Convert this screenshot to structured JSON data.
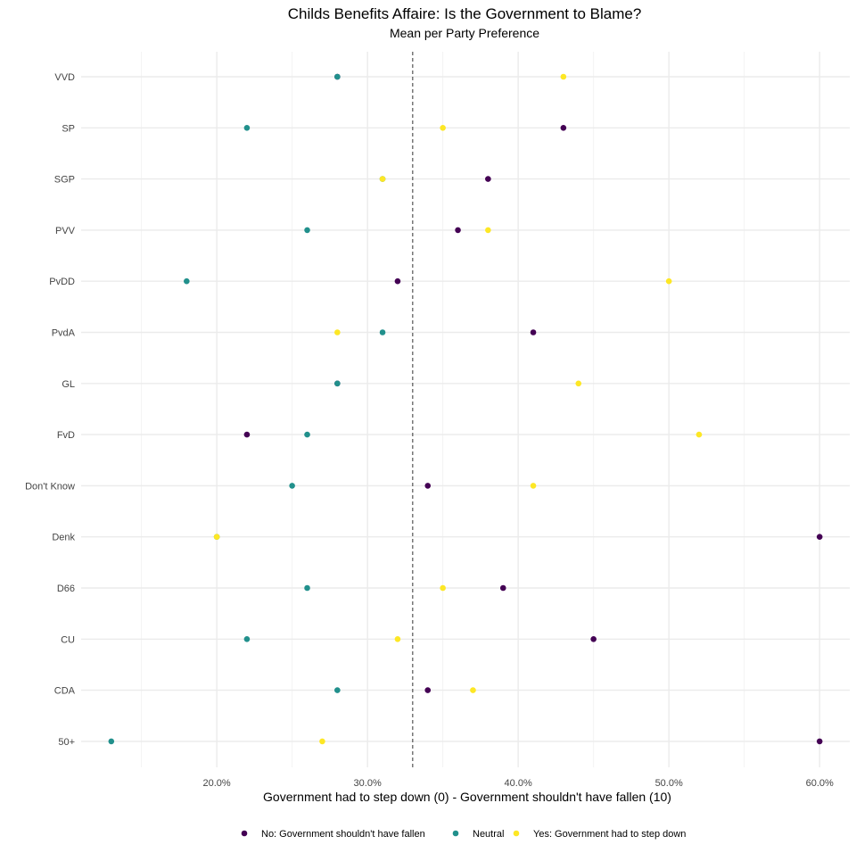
{
  "chart_data": {
    "type": "scatter",
    "title": "Childs Benefits Affaire: Is the Government to Blame?",
    "subtitle": "Mean per Party Preference",
    "xlabel": "Government had to step down (0) - Government shouldn't have fallen (10)",
    "ylabel": "",
    "xlim": [
      0.11,
      0.62
    ],
    "x_ticks": [
      0.2,
      0.3,
      0.4,
      0.5,
      0.6
    ],
    "x_tick_labels": [
      "20.0%",
      "30.0%",
      "40.0%",
      "50.0%",
      "60.0%"
    ],
    "reference_line": 0.33,
    "categories": [
      "VVD",
      "SP",
      "SGP",
      "PVV",
      "PvDD",
      "PvdA",
      "GL",
      "FvD",
      "Don't Know",
      "Denk",
      "D66",
      "CU",
      "CDA",
      "50+"
    ],
    "series": [
      {
        "name": "No: Government shouldn't have fallen",
        "color": "#440154",
        "values": [
          0.28,
          0.43,
          0.38,
          0.36,
          0.32,
          0.41,
          0.28,
          0.22,
          0.34,
          0.6,
          0.39,
          0.45,
          0.34,
          0.6
        ]
      },
      {
        "name": "Neutral",
        "color": "#21908C",
        "values": [
          0.28,
          0.22,
          0.31,
          0.26,
          0.18,
          0.31,
          0.28,
          0.26,
          0.25,
          0.2,
          0.26,
          0.22,
          0.28,
          0.13
        ]
      },
      {
        "name": "Yes: Government had to step down",
        "color": "#FDE725",
        "values": [
          0.43,
          0.35,
          0.31,
          0.38,
          0.5,
          0.28,
          0.44,
          0.52,
          0.41,
          0.2,
          0.35,
          0.32,
          0.37,
          0.27
        ]
      }
    ],
    "grid": true,
    "legend_position": "bottom"
  }
}
